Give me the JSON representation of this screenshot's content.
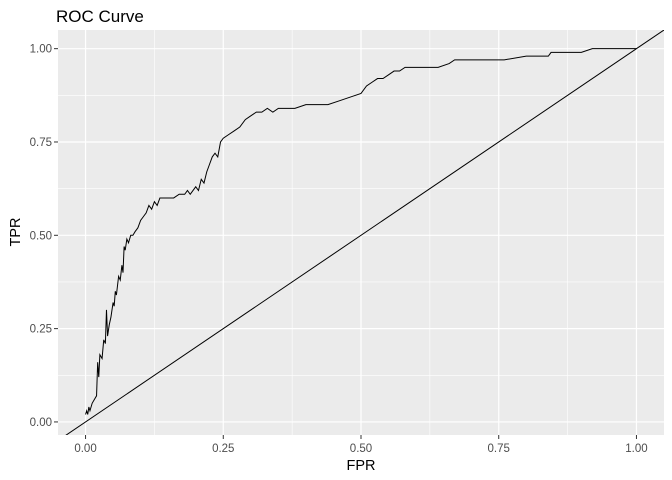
{
  "chart_data": {
    "type": "line",
    "title": "ROC Curve",
    "xlabel": "FPR",
    "ylabel": "TPR",
    "xlim": [
      -0.05,
      1.05
    ],
    "ylim": [
      -0.035,
      1.05
    ],
    "x_ticks": [
      "0.00",
      "0.25",
      "0.50",
      "0.75",
      "1.00"
    ],
    "y_ticks": [
      "0.00",
      "0.25",
      "0.50",
      "0.75",
      "1.00"
    ],
    "grid": true,
    "panel_background": "#EBEBEB",
    "line_color": "#000000",
    "series": [
      {
        "x": [
          0,
          0.002,
          0.004,
          0.006,
          0.008,
          0.012,
          0.016,
          0.02,
          0.022,
          0.024,
          0.026,
          0.03,
          0.033,
          0.036,
          0.038,
          0.04,
          0.043,
          0.046,
          0.05,
          0.052,
          0.054,
          0.056,
          0.06,
          0.063,
          0.066,
          0.068,
          0.07,
          0.072,
          0.075,
          0.078,
          0.08,
          0.082,
          0.086,
          0.09,
          0.095,
          0.1,
          0.105,
          0.11,
          0.115,
          0.12,
          0.125,
          0.13,
          0.135,
          0.14,
          0.15,
          0.16,
          0.17,
          0.18,
          0.185,
          0.19,
          0.2,
          0.205,
          0.21,
          0.215,
          0.22,
          0.225,
          0.23,
          0.235,
          0.24,
          0.245,
          0.25,
          0.26,
          0.27,
          0.28,
          0.29,
          0.3,
          0.31,
          0.32,
          0.33,
          0.34,
          0.35,
          0.36,
          0.37,
          0.38,
          0.4,
          0.42,
          0.43,
          0.44,
          0.46,
          0.48,
          0.5,
          0.51,
          0.52,
          0.53,
          0.54,
          0.55,
          0.56,
          0.57,
          0.58,
          0.6,
          0.62,
          0.64,
          0.66,
          0.67,
          0.68,
          0.7,
          0.72,
          0.76,
          0.8,
          0.84,
          0.845,
          0.85,
          0.9,
          0.92,
          0.95,
          1.0
        ],
        "y": [
          0.02,
          0.03,
          0.02,
          0.04,
          0.03,
          0.05,
          0.06,
          0.07,
          0.16,
          0.12,
          0.18,
          0.17,
          0.22,
          0.21,
          0.3,
          0.23,
          0.26,
          0.28,
          0.32,
          0.31,
          0.35,
          0.34,
          0.39,
          0.38,
          0.42,
          0.4,
          0.47,
          0.46,
          0.49,
          0.48,
          0.49,
          0.5,
          0.5,
          0.51,
          0.52,
          0.54,
          0.55,
          0.56,
          0.58,
          0.57,
          0.59,
          0.58,
          0.6,
          0.6,
          0.6,
          0.6,
          0.61,
          0.61,
          0.62,
          0.61,
          0.63,
          0.62,
          0.65,
          0.64,
          0.67,
          0.69,
          0.71,
          0.72,
          0.71,
          0.75,
          0.76,
          0.77,
          0.78,
          0.79,
          0.81,
          0.82,
          0.83,
          0.83,
          0.84,
          0.83,
          0.84,
          0.84,
          0.84,
          0.84,
          0.85,
          0.85,
          0.85,
          0.85,
          0.86,
          0.87,
          0.88,
          0.9,
          0.91,
          0.92,
          0.92,
          0.93,
          0.94,
          0.94,
          0.95,
          0.95,
          0.95,
          0.95,
          0.96,
          0.97,
          0.97,
          0.97,
          0.97,
          0.97,
          0.98,
          0.98,
          0.99,
          0.99,
          0.99,
          1.0,
          1.0,
          1.0
        ]
      },
      {
        "x": [
          -0.05,
          1.05
        ],
        "y": [
          -0.05,
          1.05
        ]
      }
    ]
  }
}
